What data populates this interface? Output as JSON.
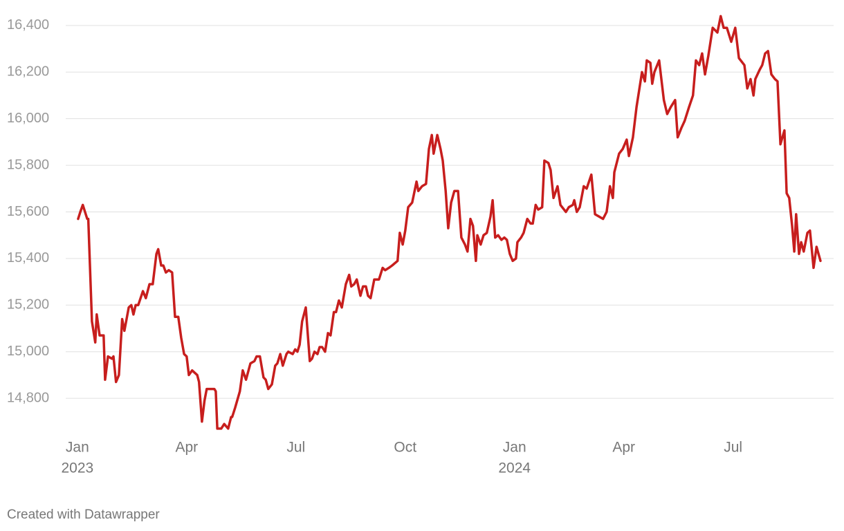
{
  "chart_data": {
    "type": "line",
    "color": "#c71e1d",
    "grid": true,
    "credit": "Created with Datawrapper",
    "xlim": [
      -0.32,
      20.76
    ],
    "xticks": [
      {
        "value": 0,
        "label": "Jan",
        "year": "2023"
      },
      {
        "value": 3,
        "label": "Apr"
      },
      {
        "value": 6,
        "label": "Jul"
      },
      {
        "value": 9,
        "label": "Oct"
      },
      {
        "value": 12,
        "label": "Jan",
        "year": "2024"
      },
      {
        "value": 15,
        "label": "Apr"
      },
      {
        "value": 18,
        "label": "Jul"
      }
    ],
    "ylim": [
      14655,
      16450
    ],
    "yticks": [
      {
        "value": 14800,
        "label": "14,800"
      },
      {
        "value": 15000,
        "label": "15,000"
      },
      {
        "value": 15200,
        "label": "15,200"
      },
      {
        "value": 15400,
        "label": "15,400"
      },
      {
        "value": 15600,
        "label": "15,600"
      },
      {
        "value": 15800,
        "label": "15,800"
      },
      {
        "value": 16000,
        "label": "16,000"
      },
      {
        "value": 16200,
        "label": "16,200"
      },
      {
        "value": 16400,
        "label": "16,400"
      }
    ],
    "x": [
      0.02,
      0.08,
      0.15,
      0.27,
      0.3,
      0.4,
      0.49,
      0.53,
      0.61,
      0.72,
      0.76,
      0.84,
      0.95,
      0.99,
      1.06,
      1.14,
      1.23,
      1.29,
      1.41,
      1.48,
      1.54,
      1.6,
      1.67,
      1.8,
      1.88,
      1.98,
      2.07,
      2.17,
      2.22,
      2.3,
      2.36,
      2.43,
      2.51,
      2.6,
      2.68,
      2.77,
      2.85,
      2.93,
      3.0,
      3.06,
      3.15,
      3.29,
      3.34,
      3.42,
      3.49,
      3.55,
      3.76,
      3.8,
      3.84,
      3.95,
      4.03,
      4.14,
      4.22,
      4.25,
      4.33,
      4.46,
      4.54,
      4.63,
      4.75,
      4.86,
      4.92,
      5.01,
      5.11,
      5.17,
      5.24,
      5.34,
      5.43,
      5.49,
      5.57,
      5.64,
      5.74,
      5.79,
      5.91,
      5.98,
      6.04,
      6.1,
      6.17,
      6.27,
      6.38,
      6.44,
      6.51,
      6.59,
      6.65,
      6.72,
      6.8,
      6.88,
      6.95,
      7.04,
      7.1,
      7.18,
      7.26,
      7.37,
      7.46,
      7.52,
      7.6,
      7.67,
      7.77,
      7.84,
      7.92,
      7.98,
      8.05,
      8.15,
      8.28,
      8.38,
      8.45,
      8.55,
      8.64,
      8.79,
      8.85,
      8.93,
      9.0,
      9.08,
      9.19,
      9.31,
      9.36,
      9.46,
      9.57,
      9.65,
      9.73,
      9.78,
      9.88,
      9.97,
      10.03,
      10.11,
      10.18,
      10.26,
      10.35,
      10.45,
      10.54,
      10.64,
      10.71,
      10.79,
      10.86,
      10.94,
      10.98,
      11.07,
      11.15,
      11.24,
      11.34,
      11.4,
      11.47,
      11.55,
      11.64,
      11.72,
      11.79,
      11.87,
      11.95,
      12.04,
      12.08,
      12.18,
      12.25,
      12.35,
      12.44,
      12.5,
      12.58,
      12.65,
      12.76,
      12.82,
      12.93,
      12.99,
      13.07,
      13.18,
      13.26,
      13.41,
      13.49,
      13.6,
      13.64,
      13.71,
      13.79,
      13.9,
      13.98,
      14.11,
      14.21,
      14.32,
      14.43,
      14.53,
      14.62,
      14.7,
      14.74,
      14.87,
      14.97,
      15.08,
      15.14,
      15.25,
      15.35,
      15.5,
      15.58,
      15.63,
      15.73,
      15.78,
      15.84,
      15.97,
      16.1,
      16.19,
      16.29,
      16.41,
      16.48,
      16.58,
      16.67,
      16.79,
      16.9,
      16.98,
      17.07,
      17.15,
      17.23,
      17.32,
      17.44,
      17.57,
      17.66,
      17.74,
      17.83,
      17.95,
      18.06,
      18.16,
      18.31,
      18.39,
      18.48,
      18.56,
      18.61,
      18.73,
      18.8,
      18.88,
      18.96,
      19.05,
      19.15,
      19.22,
      19.3,
      19.41,
      19.47,
      19.54,
      19.62,
      19.68,
      19.73,
      19.81,
      19.87,
      19.94,
      20.04,
      20.11,
      20.21,
      20.29,
      20.4
    ],
    "values": [
      15570,
      15600,
      15630,
      15570,
      15570,
      15130,
      15040,
      15160,
      15070,
      15070,
      14880,
      14980,
      14970,
      14980,
      14870,
      14900,
      15140,
      15090,
      15190,
      15200,
      15160,
      15200,
      15200,
      15260,
      15230,
      15290,
      15290,
      15420,
      15440,
      15370,
      15370,
      15340,
      15350,
      15340,
      15150,
      15150,
      15060,
      14990,
      14980,
      14900,
      14920,
      14900,
      14870,
      14700,
      14790,
      14840,
      14840,
      14830,
      14670,
      14670,
      14690,
      14670,
      14720,
      14720,
      14760,
      14830,
      14920,
      14880,
      14950,
      14960,
      14980,
      14980,
      14890,
      14880,
      14840,
      14860,
      14940,
      14950,
      14990,
      14940,
      14990,
      15000,
      14990,
      15010,
      15000,
      15030,
      15130,
      15190,
      14960,
      14970,
      15000,
      14990,
      15020,
      15020,
      15000,
      15080,
      15070,
      15170,
      15170,
      15220,
      15190,
      15290,
      15330,
      15280,
      15290,
      15310,
      15240,
      15280,
      15280,
      15240,
      15230,
      15310,
      15310,
      15360,
      15350,
      15360,
      15370,
      15390,
      15510,
      15460,
      15520,
      15620,
      15640,
      15730,
      15690,
      15710,
      15720,
      15870,
      15930,
      15850,
      15930,
      15870,
      15820,
      15690,
      15530,
      15640,
      15690,
      15690,
      15490,
      15460,
      15430,
      15570,
      15540,
      15390,
      15500,
      15460,
      15500,
      15510,
      15580,
      15650,
      15490,
      15500,
      15480,
      15490,
      15480,
      15420,
      15390,
      15400,
      15470,
      15490,
      15510,
      15570,
      15550,
      15550,
      15630,
      15610,
      15620,
      15820,
      15810,
      15780,
      15660,
      15710,
      15630,
      15600,
      15620,
      15630,
      15650,
      15600,
      15620,
      15710,
      15700,
      15760,
      15590,
      15580,
      15570,
      15600,
      15710,
      15660,
      15770,
      15850,
      15870,
      15910,
      15840,
      15920,
      16050,
      16200,
      16160,
      16250,
      16240,
      16150,
      16200,
      16250,
      16080,
      16020,
      16050,
      16080,
      15920,
      15960,
      15990,
      16050,
      16100,
      16250,
      16230,
      16280,
      16190,
      16270,
      16390,
      16370,
      16440,
      16390,
      16390,
      16330,
      16390,
      16260,
      16230,
      16130,
      16170,
      16100,
      16170,
      16210,
      16230,
      16280,
      16290,
      16190,
      16170,
      16160,
      15890,
      15950,
      15680,
      15660,
      15540,
      15430,
      15590,
      15420,
      15470,
      15430,
      15510,
      15520,
      15360,
      15450,
      15390
    ]
  }
}
